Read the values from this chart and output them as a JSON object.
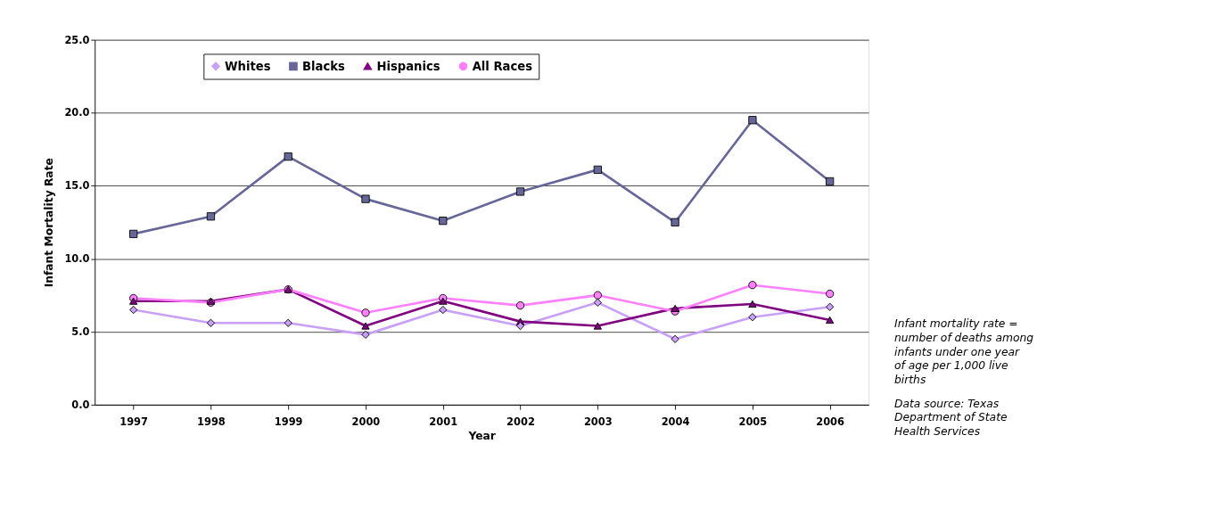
{
  "chart_data": {
    "type": "line",
    "xlabel": "Year",
    "ylabel": "Infant Mortality Rate",
    "categories": [
      "1997",
      "1998",
      "1999",
      "2000",
      "2001",
      "2002",
      "2003",
      "2004",
      "2005",
      "2006"
    ],
    "series": [
      {
        "name": "Whites",
        "color": "#c8a0f8",
        "marker": "diamond",
        "values": [
          6.5,
          5.6,
          5.6,
          4.8,
          6.5,
          5.4,
          7.0,
          4.5,
          6.0,
          6.7
        ]
      },
      {
        "name": "Blacks",
        "color": "#666699",
        "marker": "square",
        "values": [
          11.7,
          12.9,
          17.0,
          14.1,
          12.6,
          14.6,
          16.1,
          12.5,
          19.5,
          15.3
        ]
      },
      {
        "name": "Hispanics",
        "color": "#800080",
        "marker": "triangle",
        "values": [
          7.1,
          7.1,
          7.9,
          5.4,
          7.1,
          5.7,
          5.4,
          6.6,
          6.9,
          5.8
        ]
      },
      {
        "name": "All Races",
        "color": "#ff80ff",
        "marker": "circle",
        "values": [
          7.3,
          7.0,
          7.9,
          6.3,
          7.3,
          6.8,
          7.5,
          6.4,
          8.2,
          7.6
        ]
      }
    ],
    "ylim": [
      0,
      25
    ],
    "yticks": [
      {
        "value": 0,
        "label": "0.0"
      },
      {
        "value": 5,
        "label": "5.0"
      },
      {
        "value": 10,
        "label": "10.0"
      },
      {
        "value": 15,
        "label": "15.0"
      },
      {
        "value": 20,
        "label": "20.0"
      },
      {
        "value": 25,
        "label": "25.0"
      }
    ],
    "grid": "y",
    "legend": "top",
    "annotations": [
      "Infant mortality rate = number of deaths among infants under one year of age per 1,000 live births",
      "Data source:  Texas Department of State Health Services"
    ]
  }
}
